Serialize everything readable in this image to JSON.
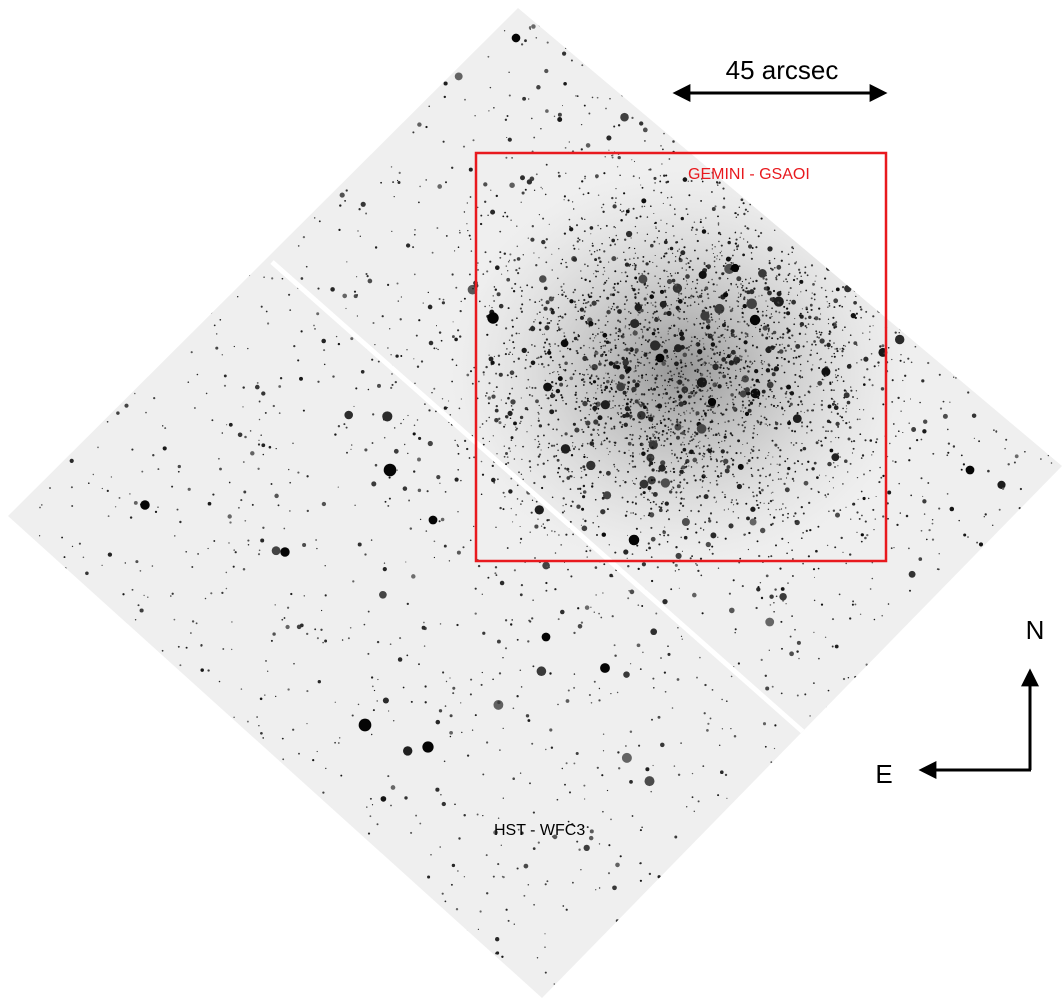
{
  "scale_bar": {
    "label": "45 arcsec"
  },
  "overlay": {
    "label": "GEMINI - GSAOI",
    "color": "#e8191e"
  },
  "field": {
    "label": "HST - WFC3"
  },
  "compass": {
    "north": "N",
    "east": "E"
  }
}
